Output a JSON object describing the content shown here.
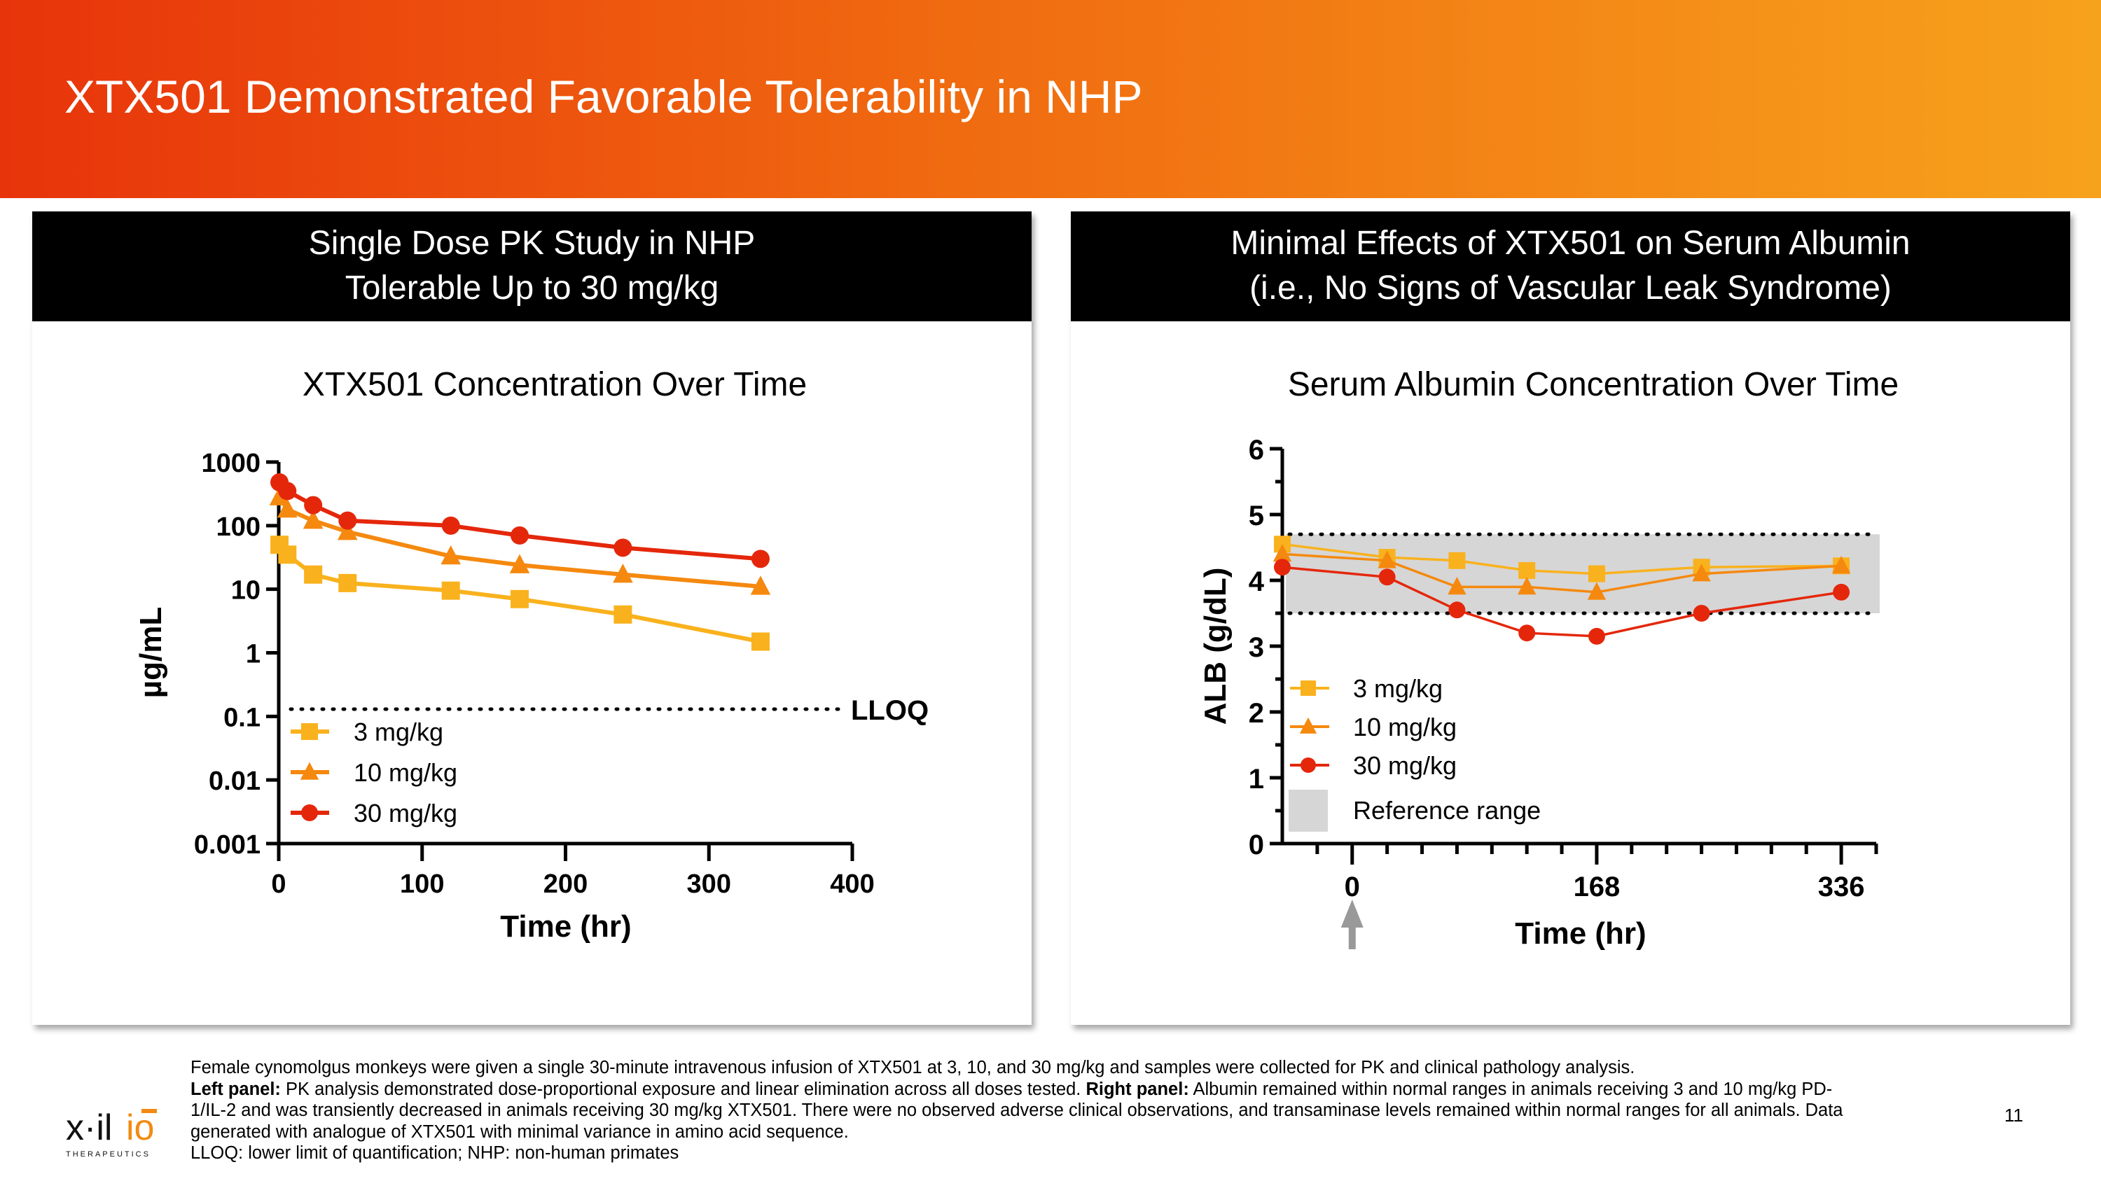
{
  "title": "XTX501 Demonstrated Favorable Tolerability in NHP",
  "left_panel": {
    "header_line1": "Single Dose PK Study in NHP",
    "header_line2": "Tolerable Up to 30 mg/kg"
  },
  "right_panel": {
    "header_line1": "Minimal Effects of XTX501 on Serum Albumin",
    "header_line2": "(i.e., No Signs of Vascular Leak Syndrome)"
  },
  "colors": {
    "3 mg/kg": "#f9b21d",
    "10 mg/kg": "#f5890f",
    "30 mg/kg": "#e4270b",
    "reference": "#d6d6d6",
    "arrow": "#999999"
  },
  "chart_data": [
    {
      "type": "line",
      "title": "XTX501 Concentration Over Time",
      "xlabel": "Time (hr)",
      "ylabel": "µg/mL",
      "yscale": "log",
      "xlim": [
        0,
        400
      ],
      "ylim": [
        0.001,
        1000
      ],
      "xticks": [
        "0",
        "100",
        "200",
        "300",
        "400"
      ],
      "yticks": [
        "0.001",
        "0.01",
        "0.1",
        "1",
        "10",
        "100",
        "1000"
      ],
      "x": [
        0.5,
        6,
        24,
        48,
        120,
        168,
        240,
        336
      ],
      "series": [
        {
          "name": "3 mg/kg",
          "marker": "square",
          "values": [
            50,
            35,
            17,
            12.5,
            9.5,
            7,
            4,
            1.5
          ]
        },
        {
          "name": "10 mg/kg",
          "marker": "triangle",
          "values": [
            280,
            180,
            120,
            80,
            33,
            24,
            17,
            11
          ]
        },
        {
          "name": "30 mg/kg",
          "marker": "circle",
          "values": [
            480,
            350,
            210,
            120,
            100,
            70,
            45,
            30
          ]
        }
      ],
      "annotation": {
        "label": "LLOQ",
        "value": 0.13
      },
      "legend": "bottom-left"
    },
    {
      "type": "line",
      "title": "Serum Albumin Concentration Over Time",
      "xlabel": "Time (hr)",
      "ylabel": "ALB (g/dL)",
      "xlim": [
        -48,
        360
      ],
      "ylim": [
        0,
        6
      ],
      "xticks": [
        "0",
        "168",
        "336"
      ],
      "yticks": [
        "0",
        "1",
        "2",
        "3",
        "4",
        "5",
        "6"
      ],
      "x": [
        -48,
        24,
        72,
        120,
        168,
        240,
        336
      ],
      "series": [
        {
          "name": "3 mg/kg",
          "marker": "square",
          "values": [
            4.55,
            4.35,
            4.3,
            4.15,
            4.1,
            4.2,
            4.22
          ]
        },
        {
          "name": "10 mg/kg",
          "marker": "triangle",
          "values": [
            4.4,
            4.3,
            3.9,
            3.9,
            3.82,
            4.1,
            4.22
          ]
        },
        {
          "name": "30 mg/kg",
          "marker": "circle",
          "values": [
            4.2,
            4.05,
            3.55,
            3.2,
            3.15,
            3.5,
            3.82
          ]
        }
      ],
      "reference_range": {
        "label": "Reference range",
        "low": 3.5,
        "high": 4.7
      },
      "dosing_arrow_at": 0,
      "legend": "bottom-left"
    }
  ],
  "footnote": {
    "line1": "Female cynomolgus monkeys were given a single 30-minute intravenous infusion of XTX501 at 3, 10, and 30 mg/kg and samples were collected for PK and clinical pathology analysis.",
    "left_label": "Left panel:",
    "left_text": " PK analysis demonstrated dose-proportional exposure and linear elimination across all doses tested. ",
    "right_label": "Right panel:",
    "right_text": " Albumin remained within normal ranges in animals receiving 3 and 10 mg/kg PD-1/IL-2 and was transiently decreased in animals receiving 30 mg/kg XTX501. There were no observed adverse clinical observations, and transaminase levels remained within normal ranges for all animals. Data generated with analogue of XTX501 with minimal variance in amino acid sequence.",
    "line_last": "LLOQ: lower limit of quantification; NHP: non-human primates"
  },
  "logo": {
    "name": "xilio",
    "sub": "THERAPEUTICS"
  },
  "page_number": "11"
}
